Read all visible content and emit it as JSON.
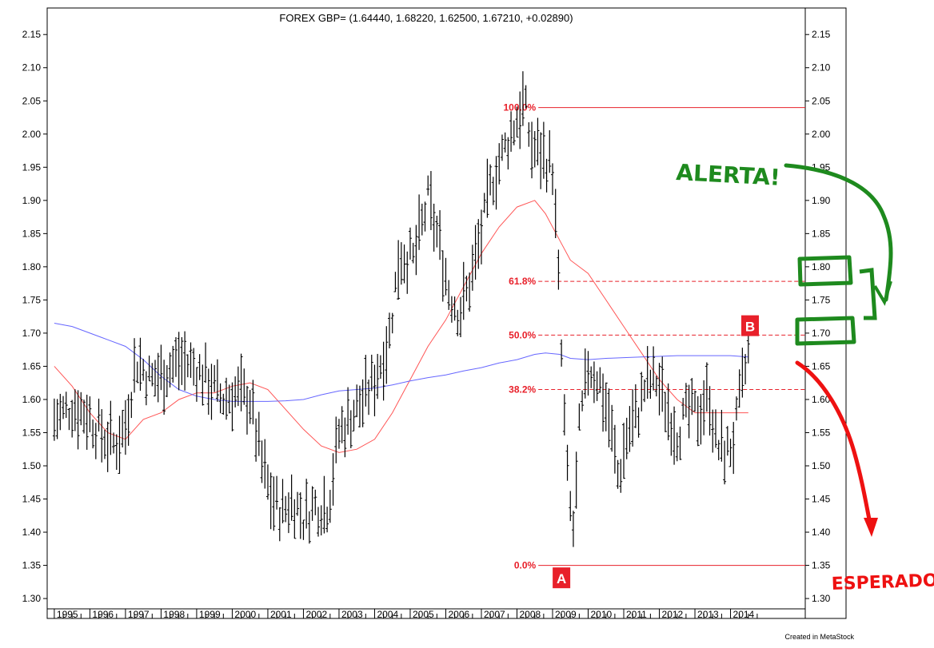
{
  "chart_data": {
    "type": "line",
    "title": "FOREX GBP= (1.64440, 1.68220, 1.62500, 1.67210, +0.02890)",
    "x_years": [
      "1995",
      "1996",
      "1997",
      "1998",
      "1999",
      "2000",
      "2001",
      "2002",
      "2003",
      "2004",
      "2005",
      "2006",
      "2007",
      "2008",
      "2009",
      "2010",
      "2011",
      "2012",
      "2013",
      "2014"
    ],
    "ylim": [
      1.27,
      2.19
    ],
    "y_ticks": [
      "1.30",
      "1.35",
      "1.40",
      "1.45",
      "1.50",
      "1.55",
      "1.60",
      "1.65",
      "1.70",
      "1.75",
      "1.80",
      "1.85",
      "1.90",
      "1.95",
      "2.00",
      "2.05",
      "2.10",
      "2.15"
    ],
    "price_bars_anchors": [
      [
        1994.5,
        1.57
      ],
      [
        1995.0,
        1.59
      ],
      [
        1995.4,
        1.58
      ],
      [
        1995.8,
        1.55
      ],
      [
        1996.2,
        1.53
      ],
      [
        1996.5,
        1.56
      ],
      [
        1996.8,
        1.66
      ],
      [
        1997.2,
        1.63
      ],
      [
        1997.6,
        1.64
      ],
      [
        1998.0,
        1.66
      ],
      [
        1998.4,
        1.65
      ],
      [
        1998.8,
        1.63
      ],
      [
        1999.2,
        1.6
      ],
      [
        1999.6,
        1.61
      ],
      [
        2000.0,
        1.6
      ],
      [
        2000.3,
        1.51
      ],
      [
        2000.6,
        1.45
      ],
      [
        2000.9,
        1.43
      ],
      [
        2001.2,
        1.45
      ],
      [
        2001.5,
        1.42
      ],
      [
        2001.8,
        1.44
      ],
      [
        2002.2,
        1.44
      ],
      [
        2002.5,
        1.55
      ],
      [
        2002.9,
        1.58
      ],
      [
        2003.2,
        1.6
      ],
      [
        2003.5,
        1.63
      ],
      [
        2003.9,
        1.69
      ],
      [
        2004.2,
        1.82
      ],
      [
        2004.6,
        1.81
      ],
      [
        2005.0,
        1.9
      ],
      [
        2005.3,
        1.84
      ],
      [
        2005.6,
        1.76
      ],
      [
        2005.9,
        1.73
      ],
      [
        2006.2,
        1.78
      ],
      [
        2006.5,
        1.85
      ],
      [
        2006.8,
        1.93
      ],
      [
        2007.1,
        1.97
      ],
      [
        2007.4,
        2.01
      ],
      [
        2007.7,
        2.05
      ],
      [
        2007.9,
        1.98
      ],
      [
        2008.2,
        1.97
      ],
      [
        2008.5,
        1.95
      ],
      [
        2008.65,
        1.8
      ],
      [
        2008.8,
        1.6
      ],
      [
        2008.95,
        1.45
      ],
      [
        2009.1,
        1.4
      ],
      [
        2009.25,
        1.55
      ],
      [
        2009.5,
        1.65
      ],
      [
        2009.8,
        1.63
      ],
      [
        2010.1,
        1.57
      ],
      [
        2010.35,
        1.48
      ],
      [
        2010.6,
        1.55
      ],
      [
        2010.9,
        1.58
      ],
      [
        2011.1,
        1.62
      ],
      [
        2011.4,
        1.63
      ],
      [
        2011.7,
        1.59
      ],
      [
        2012.0,
        1.55
      ],
      [
        2012.3,
        1.58
      ],
      [
        2012.6,
        1.58
      ],
      [
        2012.9,
        1.61
      ],
      [
        2013.1,
        1.53
      ],
      [
        2013.4,
        1.52
      ],
      [
        2013.6,
        1.54
      ],
      [
        2013.8,
        1.61
      ],
      [
        2014.0,
        1.67
      ]
    ],
    "series": [
      {
        "color": "#ff5555",
        "points": [
          [
            1994.5,
            1.65
          ],
          [
            1995.0,
            1.62
          ],
          [
            1995.5,
            1.58
          ],
          [
            1996.0,
            1.55
          ],
          [
            1996.5,
            1.54
          ],
          [
            1997.0,
            1.57
          ],
          [
            1997.5,
            1.58
          ],
          [
            1998.0,
            1.6
          ],
          [
            1998.5,
            1.61
          ],
          [
            1999.0,
            1.61
          ],
          [
            1999.5,
            1.62
          ],
          [
            2000.0,
            1.625
          ],
          [
            2000.5,
            1.615
          ],
          [
            2001.0,
            1.585
          ],
          [
            2001.5,
            1.555
          ],
          [
            2002.0,
            1.53
          ],
          [
            2002.5,
            1.52
          ],
          [
            2003.0,
            1.525
          ],
          [
            2003.5,
            1.54
          ],
          [
            2004.0,
            1.58
          ],
          [
            2004.5,
            1.63
          ],
          [
            2005.0,
            1.68
          ],
          [
            2005.5,
            1.72
          ],
          [
            2006.0,
            1.77
          ],
          [
            2006.5,
            1.82
          ],
          [
            2007.0,
            1.86
          ],
          [
            2007.5,
            1.89
          ],
          [
            2008.0,
            1.9
          ],
          [
            2008.3,
            1.88
          ],
          [
            2008.7,
            1.84
          ],
          [
            2009.0,
            1.81
          ],
          [
            2009.5,
            1.79
          ],
          [
            2010.0,
            1.75
          ],
          [
            2010.5,
            1.71
          ],
          [
            2011.0,
            1.67
          ],
          [
            2011.5,
            1.63
          ],
          [
            2012.0,
            1.6
          ],
          [
            2012.5,
            1.58
          ],
          [
            2013.0,
            1.58
          ],
          [
            2013.5,
            1.58
          ],
          [
            2014.0,
            1.58
          ]
        ]
      },
      {
        "color": "#6666ff",
        "points": [
          [
            1994.5,
            1.715
          ],
          [
            1995.0,
            1.71
          ],
          [
            1995.5,
            1.7
          ],
          [
            1996.0,
            1.69
          ],
          [
            1996.5,
            1.68
          ],
          [
            1997.0,
            1.66
          ],
          [
            1997.5,
            1.635
          ],
          [
            1998.0,
            1.615
          ],
          [
            1998.5,
            1.605
          ],
          [
            1999.0,
            1.6
          ],
          [
            1999.5,
            1.597
          ],
          [
            2000.0,
            1.597
          ],
          [
            2000.5,
            1.597
          ],
          [
            2001.0,
            1.598
          ],
          [
            2001.5,
            1.6
          ],
          [
            2002.0,
            1.607
          ],
          [
            2002.5,
            1.613
          ],
          [
            2003.0,
            1.615
          ],
          [
            2003.5,
            1.617
          ],
          [
            2004.0,
            1.622
          ],
          [
            2004.5,
            1.628
          ],
          [
            2005.0,
            1.633
          ],
          [
            2005.5,
            1.637
          ],
          [
            2006.0,
            1.643
          ],
          [
            2006.5,
            1.648
          ],
          [
            2007.0,
            1.655
          ],
          [
            2007.5,
            1.66
          ],
          [
            2008.0,
            1.668
          ],
          [
            2008.3,
            1.67
          ],
          [
            2008.7,
            1.668
          ],
          [
            2009.0,
            1.662
          ],
          [
            2009.5,
            1.66
          ],
          [
            2010.0,
            1.662
          ],
          [
            2010.5,
            1.663
          ],
          [
            2011.0,
            1.664
          ],
          [
            2011.5,
            1.665
          ],
          [
            2012.0,
            1.666
          ],
          [
            2012.5,
            1.666
          ],
          [
            2013.0,
            1.666
          ],
          [
            2013.5,
            1.666
          ],
          [
            2014.0,
            1.664
          ]
        ]
      }
    ],
    "fib_levels": [
      {
        "label": "100.0%",
        "value": 2.04,
        "style": "solid"
      },
      {
        "label": "61.8%",
        "value": 1.778,
        "style": "dashed"
      },
      {
        "label": "50.0%",
        "value": 1.697,
        "style": "dashed"
      },
      {
        "label": "38.2%",
        "value": 1.615,
        "style": "dashed"
      },
      {
        "label": "0.0%",
        "value": 1.35,
        "style": "solid"
      }
    ],
    "markers": [
      {
        "label": "A",
        "x": 2008.75,
        "y": 1.33
      },
      {
        "label": "B",
        "x": 2014.05,
        "y": 1.71
      }
    ],
    "annotations": {
      "alerta": "ALERTA!",
      "esperado": "ESPERADO"
    },
    "credit": "Created in MetaStock",
    "colors": {
      "price": "#000000",
      "fib": "#e8202a",
      "green": "#1e8a1e",
      "red": "#ee1111"
    }
  }
}
